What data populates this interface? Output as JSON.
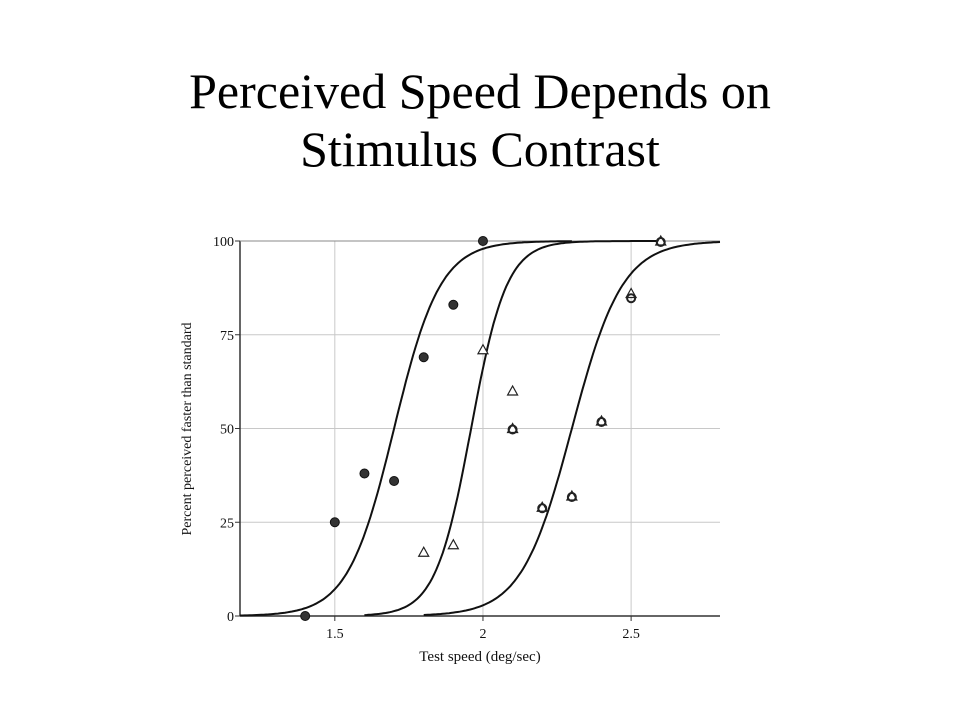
{
  "slide": {
    "title_line1": "Perceived Speed Depends on",
    "title_line2": "Stimulus Contrast"
  },
  "chart_data": {
    "type": "scatter",
    "title": "",
    "xlabel": "Test speed (deg/sec)",
    "ylabel": "Percent perceived faster than standard",
    "xlim": [
      1.18,
      2.8
    ],
    "ylim": [
      0,
      100
    ],
    "x_ticks": [
      1.5,
      2,
      2.5
    ],
    "x_tick_labels": [
      "1.5",
      "2",
      "2.5"
    ],
    "y_ticks": [
      0,
      25,
      50,
      75,
      100
    ],
    "y_tick_labels": [
      "0",
      "25",
      "50",
      "75",
      "100"
    ],
    "grid": true,
    "legend": "none",
    "series": [
      {
        "marker": "filled-circle",
        "points": [
          [
            1.4,
            0
          ],
          [
            1.5,
            25
          ],
          [
            1.6,
            38
          ],
          [
            1.7,
            36
          ],
          [
            1.8,
            69
          ],
          [
            1.9,
            83
          ],
          [
            2.0,
            100
          ]
        ],
        "fit": {
          "x_start": 1.18,
          "x_end": 2.3,
          "midpoint": 1.7,
          "scale": 0.078
        }
      },
      {
        "marker": "open-triangle",
        "points": [
          [
            1.8,
            17
          ],
          [
            1.9,
            19
          ],
          [
            2.0,
            71
          ],
          [
            2.1,
            60
          ],
          [
            2.1,
            50
          ],
          [
            2.2,
            29
          ],
          [
            2.3,
            32
          ],
          [
            2.4,
            52
          ],
          [
            2.5,
            86
          ],
          [
            2.6,
            100
          ]
        ],
        "fit": {
          "x_start": 1.6,
          "x_end": 2.6,
          "midpoint": 1.96,
          "scale": 0.06
        }
      },
      {
        "marker": "open-circle",
        "points": [
          [
            2.1,
            50
          ],
          [
            2.2,
            29
          ],
          [
            2.3,
            32
          ],
          [
            2.4,
            52
          ],
          [
            2.5,
            85
          ],
          [
            2.6,
            100
          ]
        ],
        "fit": {
          "x_start": 1.8,
          "x_end": 2.8,
          "midpoint": 2.3,
          "scale": 0.085
        }
      }
    ]
  }
}
